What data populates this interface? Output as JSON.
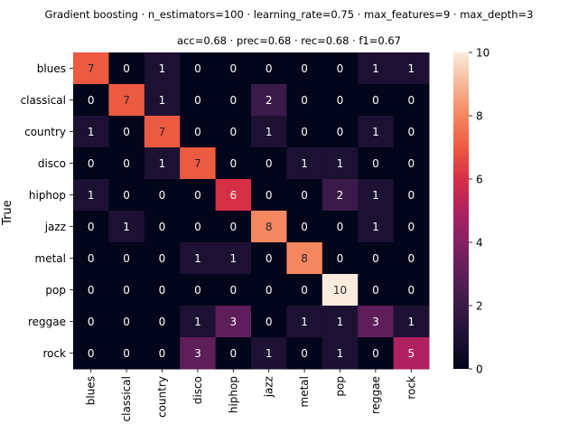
{
  "chart_data": {
    "type": "heatmap",
    "title_lines": [
      "Gradient boosting · n_estimators=100 · learning_rate=0.75 · max_features=9 · max_depth=3",
      "acc=0.68 · prec=0.68 · rec=0.68 · f1=0.67"
    ],
    "ylabel": "True",
    "xlabel": "",
    "x_categories": [
      "blues",
      "classical",
      "country",
      "disco",
      "hiphop",
      "jazz",
      "metal",
      "pop",
      "reggae",
      "rock"
    ],
    "y_categories": [
      "blues",
      "classical",
      "country",
      "disco",
      "hiphop",
      "jazz",
      "metal",
      "pop",
      "reggae",
      "rock"
    ],
    "matrix": [
      [
        7,
        0,
        1,
        0,
        0,
        0,
        0,
        0,
        1,
        1
      ],
      [
        0,
        7,
        1,
        0,
        0,
        2,
        0,
        0,
        0,
        0
      ],
      [
        1,
        0,
        7,
        0,
        0,
        1,
        0,
        0,
        1,
        0
      ],
      [
        0,
        0,
        1,
        7,
        0,
        0,
        1,
        1,
        0,
        0
      ],
      [
        1,
        0,
        0,
        0,
        6,
        0,
        0,
        2,
        1,
        0
      ],
      [
        0,
        1,
        0,
        0,
        0,
        8,
        0,
        0,
        1,
        0
      ],
      [
        0,
        0,
        0,
        1,
        1,
        0,
        8,
        0,
        0,
        0
      ],
      [
        0,
        0,
        0,
        0,
        0,
        0,
        0,
        10,
        0,
        0
      ],
      [
        0,
        0,
        0,
        1,
        3,
        0,
        1,
        1,
        3,
        1
      ],
      [
        0,
        0,
        0,
        3,
        0,
        1,
        0,
        1,
        0,
        5
      ]
    ],
    "colorbar": {
      "colormap": "rocket",
      "vmin": 0,
      "vmax": 10,
      "ticks": [
        "0",
        "2",
        "4",
        "6",
        "8",
        "10"
      ]
    }
  }
}
